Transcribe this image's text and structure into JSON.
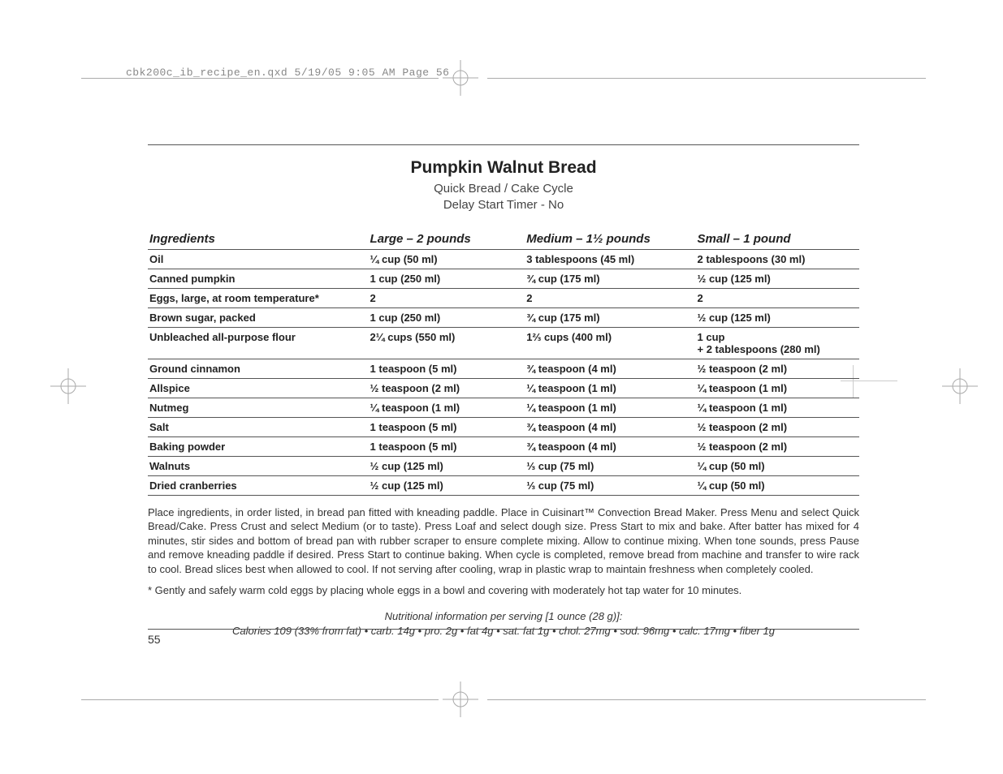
{
  "slug": "cbk200c_ib_recipe_en.qxd  5/19/05  9:05 AM  Page 56",
  "title": "Pumpkin Walnut Bread",
  "subtitle_line1": "Quick Bread / Cake Cycle",
  "subtitle_line2": "Delay Start Timer - No",
  "headers": {
    "ingredients": "Ingredients",
    "large": "Large – 2 pounds",
    "medium": "Medium – 1½ pounds",
    "small": "Small – 1 pound"
  },
  "rows": [
    {
      "ing": "Oil",
      "lg": "¼ cup (50 ml)",
      "md": "3 tablespoons (45 ml)",
      "sm": "2 tablespoons (30 ml)"
    },
    {
      "ing": "Canned pumpkin",
      "lg": "1 cup (250 ml)",
      "md": "¾ cup (175 ml)",
      "sm": "½ cup (125 ml)"
    },
    {
      "ing": "Eggs, large, at room temperature*",
      "lg": "2",
      "md": "2",
      "sm": "2"
    },
    {
      "ing": "Brown sugar, packed",
      "lg": "1 cup (250 ml)",
      "md": "¾ cup (175 ml)",
      "sm": "½ cup (125 ml)"
    },
    {
      "ing": "Unbleached all-purpose flour",
      "lg": "2¼ cups (550 ml)",
      "md": "1⅔ cups (400 ml)",
      "sm": "1 cup\n+ 2 tablespoons (280 ml)"
    },
    {
      "ing": "Ground cinnamon",
      "lg": "1 teaspoon (5 ml)",
      "md": "¾ teaspoon (4 ml)",
      "sm": "½ teaspoon (2 ml)"
    },
    {
      "ing": "Allspice",
      "lg": "½ teaspoon (2 ml)",
      "md": "¼ teaspoon (1 ml)",
      "sm": "¼ teaspoon (1 ml)"
    },
    {
      "ing": "Nutmeg",
      "lg": "¼ teaspoon (1 ml)",
      "md": "¼ teaspoon (1 ml)",
      "sm": "¼ teaspoon (1 ml)"
    },
    {
      "ing": "Salt",
      "lg": "1 teaspoon (5 ml)",
      "md": "¾ teaspoon (4 ml)",
      "sm": "½ teaspoon (2 ml)"
    },
    {
      "ing": "Baking powder",
      "lg": "1 teaspoon (5 ml)",
      "md": "¾ teaspoon (4 ml)",
      "sm": "½ teaspoon (2 ml)"
    },
    {
      "ing": "Walnuts",
      "lg": "½ cup (125 ml)",
      "md": "⅓ cup (75 ml)",
      "sm": "¼ cup (50 ml)"
    },
    {
      "ing": "Dried cranberries",
      "lg": "½ cup (125 ml)",
      "md": "⅓ cup (75 ml)",
      "sm": "¼ cup (50 ml)"
    }
  ],
  "instructions": "Place ingredients, in order listed, in bread pan fitted with kneading paddle. Place in Cuisinart™ Convection Bread Maker. Press Menu and select Quick Bread/Cake. Press Crust and select Medium (or to taste). Press Loaf and select dough size. Press Start to mix and bake. After batter has mixed for 4 minutes, stir sides and bottom of bread pan with rubber scraper to ensure complete mixing. Allow to continue mixing. When tone sounds, press Pause and remove kneading paddle if desired. Press Start to continue baking. When cycle is completed, remove bread from machine and transfer to wire rack to cool. Bread slices best when allowed to cool. If not serving after cooling, wrap in plastic wrap to maintain freshness when completely cooled.",
  "footnote": "* Gently and safely warm cold eggs by placing whole eggs in a bowl and covering with moderately hot tap water for 10 minutes.",
  "nutri_line1": "Nutritional information per serving [1 ounce (28 g)]:",
  "nutri_line2": "Calories 109 (33% from fat) • carb. 14g • pro. 2g • fat 4g • sat. fat 1g • chol. 27mg • sod. 96mg • calc. 17mg • fiber 1g",
  "pagenum": "55",
  "colors": {
    "text": "#333333",
    "rule": "#555555",
    "slug": "#888888"
  }
}
